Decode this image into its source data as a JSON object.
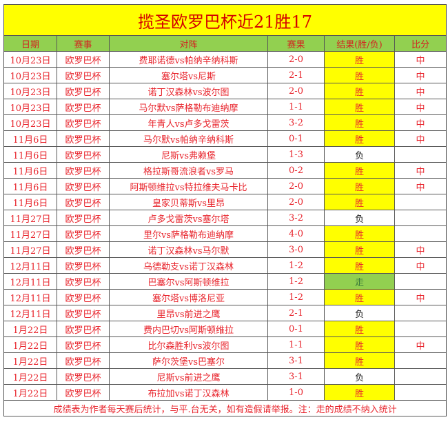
{
  "title": "揽圣欧罗巴杯近21胜17",
  "headers": [
    "日期",
    "赛事",
    "对阵",
    "赛果",
    "结果(胜/负)",
    "比分"
  ],
  "rows": [
    {
      "date": "10月23日",
      "league": "欧罗巴杯",
      "match": "费耶诺德vs帕纳辛纳科斯",
      "score": "2-0",
      "result": "胜",
      "mark": "中"
    },
    {
      "date": "10月23日",
      "league": "欧罗巴杯",
      "match": "塞尔塔vs尼斯",
      "score": "2-1",
      "result": "胜",
      "mark": "中"
    },
    {
      "date": "10月23日",
      "league": "欧罗巴杯",
      "match": "诺丁汉森林vs波尔图",
      "score": "2-0",
      "result": "胜",
      "mark": "中"
    },
    {
      "date": "10月23日",
      "league": "欧罗巴杯",
      "match": "马尔默vs萨格勒布迪纳摩",
      "score": "1-1",
      "result": "胜",
      "mark": "中"
    },
    {
      "date": "10月23日",
      "league": "欧罗巴杯",
      "match": "年青人vs卢多戈雷茨",
      "score": "3-2",
      "result": "胜",
      "mark": "中"
    },
    {
      "date": "11月6日",
      "league": "欧罗巴杯",
      "match": "马尔默vs帕纳辛纳科斯",
      "score": "0-1",
      "result": "胜",
      "mark": "中"
    },
    {
      "date": "11月6日",
      "league": "欧罗巴杯",
      "match": "尼斯vs弗赖堡",
      "score": "1-3",
      "result": "负",
      "mark": ""
    },
    {
      "date": "11月6日",
      "league": "欧罗巴杯",
      "match": "格拉斯哥流浪者vs罗马",
      "score": "0-2",
      "result": "胜",
      "mark": "中"
    },
    {
      "date": "11月6日",
      "league": "欧罗巴杯",
      "match": "阿斯顿维拉vs特拉维夫马卡比",
      "score": "2-0",
      "result": "胜",
      "mark": "中"
    },
    {
      "date": "11月6日",
      "league": "欧罗巴杯",
      "match": "皇家贝蒂斯vs里昂",
      "score": "2-0",
      "result": "胜",
      "mark": ""
    },
    {
      "date": "11月27日",
      "league": "欧罗巴杯",
      "match": "卢多戈雷茨vs塞尔塔",
      "score": "3-2",
      "result": "负",
      "mark": ""
    },
    {
      "date": "11月27日",
      "league": "欧罗巴杯",
      "match": "里尔vs萨格勒布迪纳摩",
      "score": "4-0",
      "result": "胜",
      "mark": ""
    },
    {
      "date": "11月27日",
      "league": "欧罗巴杯",
      "match": "诺丁汉森林vs马尔默",
      "score": "3-0",
      "result": "胜",
      "mark": "中"
    },
    {
      "date": "12月11日",
      "league": "欧罗巴杯",
      "match": "乌德勒支vs诺丁汉森林",
      "score": "1-2",
      "result": "胜",
      "mark": "中"
    },
    {
      "date": "12月11日",
      "league": "欧罗巴杯",
      "match": "巴塞尔vs阿斯顿维拉",
      "score": "1-2",
      "result": "走",
      "mark": ""
    },
    {
      "date": "12月11日",
      "league": "欧罗巴杯",
      "match": "塞尔塔vs博洛尼亚",
      "score": "1-2",
      "result": "胜",
      "mark": "中"
    },
    {
      "date": "12月11日",
      "league": "欧罗巴杯",
      "match": "里昂vs前进之鹰",
      "score": "2-1",
      "result": "负",
      "mark": ""
    },
    {
      "date": "1月22日",
      "league": "欧罗巴杯",
      "match": "费内巴切vs阿斯顿维拉",
      "score": "0-1",
      "result": "胜",
      "mark": ""
    },
    {
      "date": "1月22日",
      "league": "欧罗巴杯",
      "match": "比尔森胜利vs波尔图",
      "score": "1-1",
      "result": "胜",
      "mark": "中"
    },
    {
      "date": "1月22日",
      "league": "欧罗巴杯",
      "match": "萨尔茨堡vs巴塞尔",
      "score": "3-1",
      "result": "胜",
      "mark": ""
    },
    {
      "date": "1月22日",
      "league": "欧罗巴杯",
      "match": "尼斯vs前进之鹰",
      "score": "3-1",
      "result": "负",
      "mark": ""
    },
    {
      "date": "1月22日",
      "league": "欧罗巴杯",
      "match": "布拉加vs诺丁汉森林",
      "score": "1-0",
      "result": "胜",
      "mark": ""
    }
  ],
  "footer": "成绩表为作者每天赛后统计，与平.台无关，如有造假请举报。注：走的成绩不纳入统计",
  "colors": {
    "win_bg": "#ffff00",
    "push_bg": "#92d050",
    "header_bg": "#92d050",
    "text": "#e8242c"
  }
}
